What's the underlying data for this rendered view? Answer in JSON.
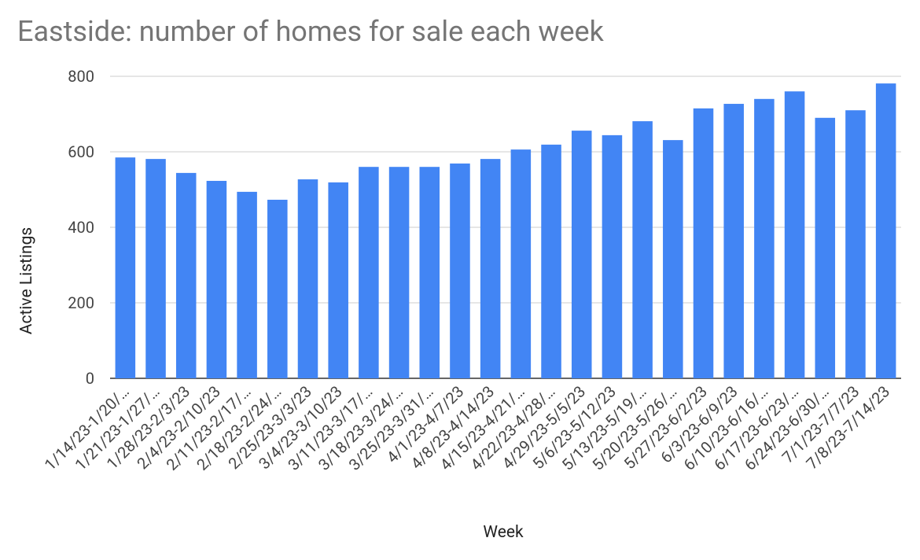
{
  "chart_data": {
    "type": "bar",
    "title": "Eastside: number of homes for sale each week",
    "x_label": "Week",
    "y_label": "Active Listings",
    "categories": [
      "1/14/23-1/20/…",
      "1/21/23-1/27/…",
      "1/28/23-2/3/23",
      "2/4/23-2/10/23",
      "2/11/23-2/17/…",
      "2/18/23-2/24/…",
      "2/25/23-3/3/23",
      "3/4/23-3/10/23",
      "3/11/23-3/17/…",
      "3/18/23-3/24/…",
      "3/25/23-3/31/…",
      "4/1/23-4/7/23",
      "4/8/23-4/14/23",
      "4/15/23-4/21/…",
      "4/22/23-4/28/…",
      "4/29/23-5/5/23",
      "5/6/23-5/12/23",
      "5/13/23-5/19/…",
      "5/20/23-5/26/…",
      "5/27/23-6/2/23",
      "6/3/23-6/9/23",
      "6/10/23-6/16/…",
      "6/17/23-6/23/…",
      "6/24/23-6/30/…",
      "7/1/23-7/7/23",
      "7/8/23-7/14/23"
    ],
    "values": [
      585,
      581,
      544,
      523,
      494,
      473,
      527,
      519,
      560,
      560,
      560,
      569,
      581,
      606,
      619,
      656,
      644,
      681,
      631,
      715,
      727,
      740,
      760,
      690,
      710,
      781
    ],
    "color": "#4285f4",
    "ylim": [
      0,
      800
    ],
    "yticks": [
      0,
      200,
      400,
      600,
      800
    ],
    "grid": true
  }
}
